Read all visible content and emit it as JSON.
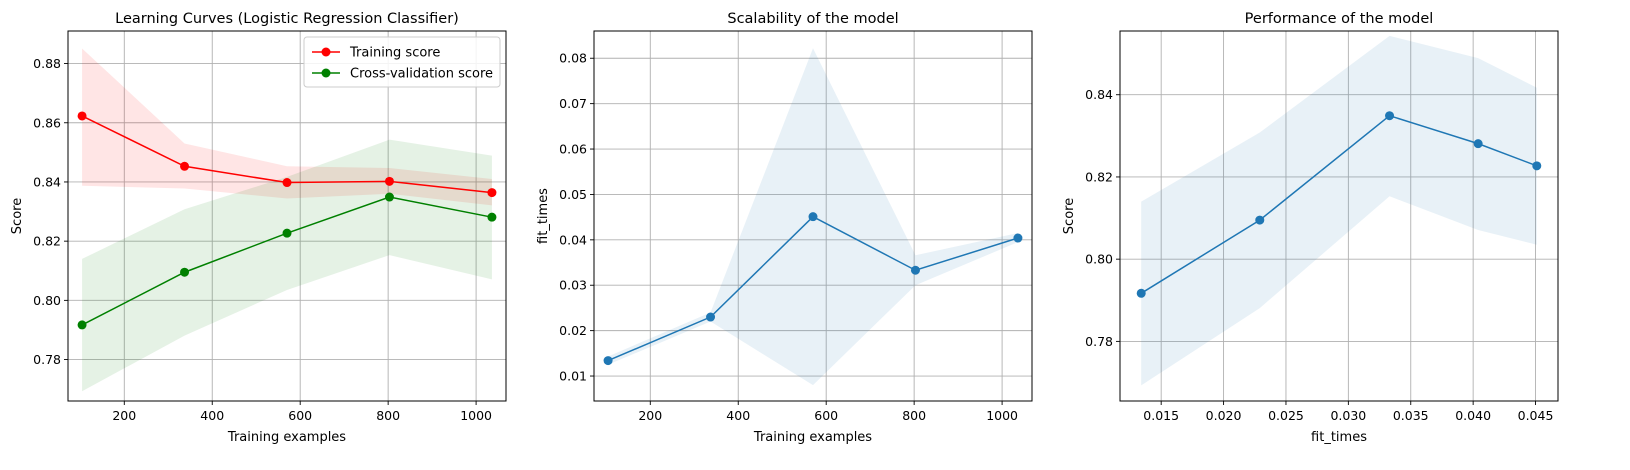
{
  "chart_data": [
    {
      "type": "line",
      "title": "Learning Curves (Logistic Regression Classifier)",
      "xlabel": "Training examples",
      "ylabel": "Score",
      "xlim": [
        72,
        1068
      ],
      "ylim": [
        0.766,
        0.891
      ],
      "xticks": [
        200,
        400,
        600,
        800,
        1000
      ],
      "yticks": [
        0.78,
        0.8,
        0.82,
        0.84,
        0.86,
        0.88
      ],
      "ytick_labels": [
        "0.78",
        "0.80",
        "0.82",
        "0.84",
        "0.86",
        "0.88"
      ],
      "grid": true,
      "legend": "top-right",
      "x": [
        104,
        337,
        570,
        803,
        1036
      ],
      "series": [
        {
          "name": "Training score",
          "color": "#ff0000",
          "fill": "#ff0000",
          "values": [
            0.8623,
            0.8453,
            0.8398,
            0.8402,
            0.8364
          ],
          "lower": [
            0.8387,
            0.8378,
            0.8344,
            0.836,
            0.8321
          ],
          "upper": [
            0.8851,
            0.853,
            0.8453,
            0.8447,
            0.841
          ]
        },
        {
          "name": "Cross-validation score",
          "color": "#008000",
          "fill": "#008000",
          "values": [
            0.7917,
            0.8095,
            0.8227,
            0.8349,
            0.8281
          ],
          "lower": [
            0.7693,
            0.7881,
            0.8035,
            0.8153,
            0.8071
          ],
          "upper": [
            0.814,
            0.8308,
            0.8417,
            0.8543,
            0.8489
          ]
        }
      ]
    },
    {
      "type": "line",
      "title": "Scalability of the model",
      "xlabel": "Training examples",
      "ylabel": "fit_times",
      "xlim": [
        72,
        1068
      ],
      "ylim": [
        0.0045,
        0.086
      ],
      "xticks": [
        200,
        400,
        600,
        800,
        1000
      ],
      "yticks": [
        0.01,
        0.02,
        0.03,
        0.04,
        0.05,
        0.06,
        0.07,
        0.08
      ],
      "ytick_labels": [
        "0.01",
        "0.02",
        "0.03",
        "0.04",
        "0.05",
        "0.06",
        "0.07",
        "0.08"
      ],
      "grid": true,
      "x": [
        104,
        337,
        570,
        803,
        1036
      ],
      "series": [
        {
          "color": "#1f77b4",
          "fill": "#1f77b4",
          "values": [
            0.0134,
            0.023,
            0.0451,
            0.0333,
            0.0404
          ],
          "lower": [
            0.0125,
            0.022,
            0.008,
            0.03,
            0.0395
          ],
          "upper": [
            0.0143,
            0.024,
            0.0822,
            0.0366,
            0.0415
          ]
        }
      ]
    },
    {
      "type": "line",
      "title": "Performance of the model",
      "xlabel": "fit_times",
      "ylabel": "Score",
      "xlim": [
        0.0117,
        0.0468
      ],
      "ylim": [
        0.7655,
        0.8555
      ],
      "xticks": [
        0.015,
        0.02,
        0.025,
        0.03,
        0.035,
        0.04,
        0.045
      ],
      "xtick_labels": [
        "0.015",
        "0.020",
        "0.025",
        "0.030",
        "0.035",
        "0.040",
        "0.045"
      ],
      "yticks": [
        0.78,
        0.8,
        0.82,
        0.84
      ],
      "ytick_labels": [
        "0.78",
        "0.80",
        "0.82",
        "0.84"
      ],
      "grid": true,
      "x": [
        0.0134,
        0.0229,
        0.0333,
        0.0404,
        0.0451
      ],
      "series": [
        {
          "color": "#1f77b4",
          "fill": "#1f77b4",
          "values": [
            0.7917,
            0.8095,
            0.8349,
            0.8281,
            0.8227
          ],
          "lower": [
            0.7693,
            0.7881,
            0.8153,
            0.8071,
            0.8035
          ],
          "upper": [
            0.814,
            0.8308,
            0.8543,
            0.8489,
            0.8417
          ]
        }
      ]
    }
  ]
}
